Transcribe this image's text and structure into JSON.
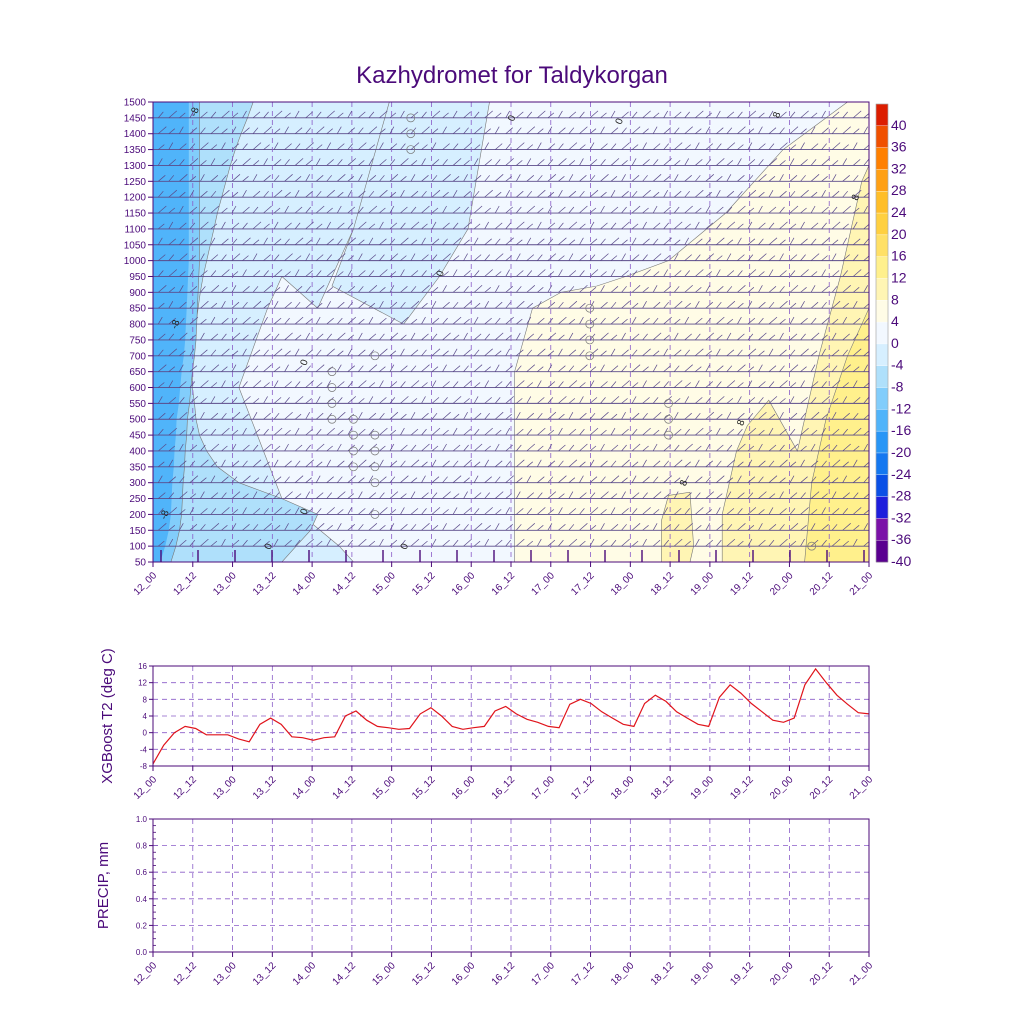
{
  "colors": {
    "frame": "#4b0a7a",
    "grid": "#8a5cc8",
    "line": "#e0141c",
    "barb": "#5a4a8a"
  },
  "chart_data": [
    {
      "type": "heatmap",
      "title": "Kazhydromet for Taldykorgan",
      "x_ticks": [
        "12_00",
        "12_12",
        "13_00",
        "13_12",
        "14_00",
        "14_12",
        "15_00",
        "15_12",
        "16_00",
        "16_12",
        "17_00",
        "17_12",
        "18_00",
        "18_12",
        "19_00",
        "19_12",
        "20_00",
        "20_12",
        "21_00"
      ],
      "y_ticks": [
        50,
        100,
        150,
        200,
        250,
        300,
        350,
        400,
        450,
        500,
        550,
        600,
        650,
        700,
        750,
        800,
        850,
        900,
        950,
        1000,
        1050,
        1100,
        1150,
        1200,
        1250,
        1300,
        1350,
        1400,
        1450,
        1500
      ],
      "ylim": [
        50,
        1500
      ],
      "colorbar": {
        "levels": [
          -40,
          -36,
          -32,
          -28,
          -24,
          -20,
          -16,
          -12,
          -8,
          -4,
          0,
          4,
          8,
          12,
          16,
          20,
          24,
          28,
          32,
          36,
          40
        ],
        "labels": [
          "40",
          "36",
          "32",
          "28",
          "24",
          "20",
          "16",
          "12",
          "8",
          "4",
          "0",
          "-4",
          "-8",
          "-12",
          "-16",
          "-20",
          "-24",
          "-28",
          "-32",
          "-36",
          "-40"
        ],
        "colors": [
          "#5a0090",
          "#7b12a8",
          "#1e1edc",
          "#0a50e6",
          "#1478f0",
          "#2896f6",
          "#50b4fa",
          "#82cdfb",
          "#afe0fb",
          "#d6efff",
          "#f2f8ff",
          "#fffce6",
          "#fff5b4",
          "#fff08c",
          "#ffe066",
          "#ffd040",
          "#ffbe28",
          "#ffa014",
          "#ff8000",
          "#f05000",
          "#dc1e00"
        ]
      },
      "contour_labels": [
        "-8",
        "-8",
        "-8",
        "0",
        "0",
        "0",
        "0",
        "0",
        "0",
        "0",
        "8",
        "8",
        "8"
      ]
    },
    {
      "type": "line",
      "ylabel": "XGBoost T2 (deg C)",
      "ylim": [
        -8,
        16
      ],
      "y_ticks": [
        -8,
        -4,
        0,
        4,
        8,
        12,
        16
      ],
      "x_ticks": [
        "12_00",
        "12_12",
        "13_00",
        "13_12",
        "14_00",
        "14_12",
        "15_00",
        "15_12",
        "16_00",
        "16_12",
        "17_00",
        "17_12",
        "18_00",
        "18_12",
        "19_00",
        "19_12",
        "20_00",
        "20_12",
        "21_00"
      ],
      "values": [
        -7.5,
        -3.0,
        0.0,
        1.5,
        1.0,
        -0.5,
        -0.5,
        -0.5,
        -1.5,
        -2.2,
        2.0,
        3.5,
        2.0,
        -1.0,
        -1.2,
        -1.8,
        -1.2,
        -1.0,
        4.0,
        5.2,
        3.0,
        1.5,
        1.2,
        0.8,
        1.0,
        4.5,
        6.0,
        4.0,
        1.5,
        0.8,
        1.2,
        1.5,
        5.2,
        6.3,
        4.5,
        3.2,
        2.5,
        1.5,
        1.2,
        6.8,
        8.0,
        7.0,
        5.0,
        3.5,
        2.0,
        1.5,
        7.0,
        9.0,
        7.5,
        5.0,
        3.5,
        2.0,
        1.5,
        8.5,
        11.5,
        9.5,
        7.0,
        5.0,
        3.0,
        2.5,
        3.5,
        11.5,
        15.3,
        12.0,
        9.0,
        6.8,
        4.8,
        4.5
      ]
    },
    {
      "type": "line",
      "ylabel": "PRECIP, mm",
      "ylim": [
        0,
        1.0
      ],
      "y_ticks": [
        "0.0",
        "0.2",
        "0.4",
        "0.6",
        "0.8",
        "1.0"
      ],
      "x_ticks": [
        "12_00",
        "12_12",
        "13_00",
        "13_12",
        "14_00",
        "14_12",
        "15_00",
        "15_12",
        "16_00",
        "16_12",
        "17_00",
        "17_12",
        "18_00",
        "18_12",
        "19_00",
        "19_12",
        "20_00",
        "20_12",
        "21_00"
      ],
      "values": []
    }
  ]
}
